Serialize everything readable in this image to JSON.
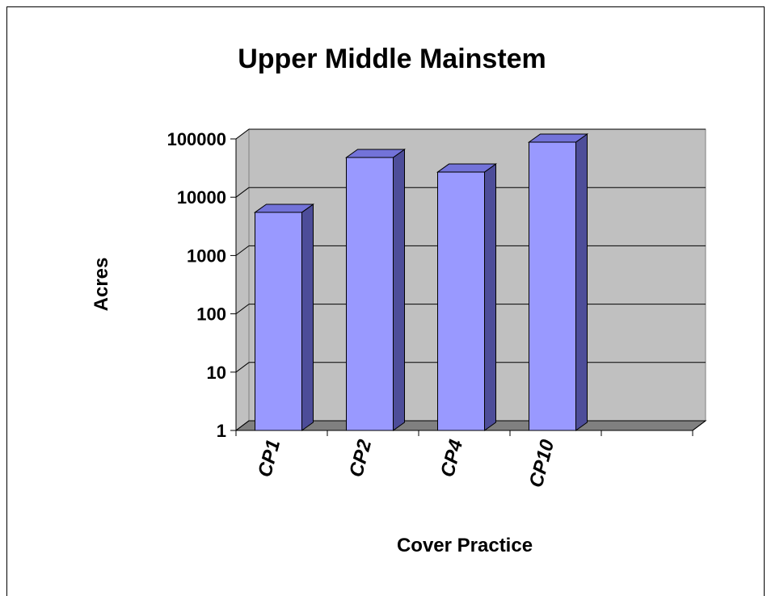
{
  "chart_data": {
    "type": "bar",
    "title": "Upper Middle Mainstem",
    "categories": [
      "CP1",
      "CP2",
      "CP4",
      "CP10",
      null
    ],
    "values": [
      5500,
      48000,
      27000,
      88000,
      null
    ],
    "color": "#9999ff",
    "y_label": "Acres",
    "x_label": "Cover Practice",
    "log_scale": true,
    "ylim": [
      1,
      100000
    ],
    "yticks": [
      1,
      10,
      100,
      1000,
      10000,
      100000
    ],
    "grid": true
  }
}
